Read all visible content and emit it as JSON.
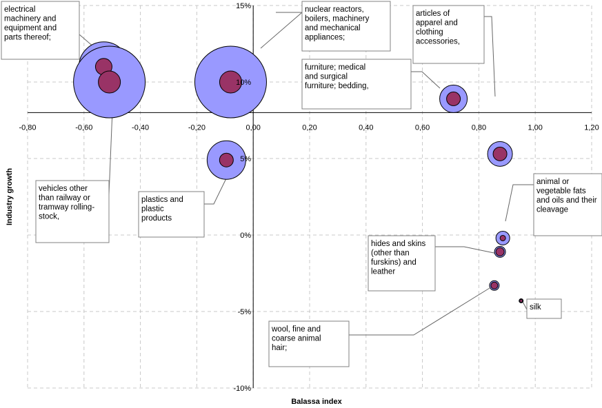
{
  "chart_data": {
    "type": "bubble",
    "xlabel": "Balassa index",
    "ylabel": "Industry growth",
    "xlim": [
      -0.8,
      1.2
    ],
    "ylim": [
      -10,
      15
    ],
    "x_ticks": [
      -0.8,
      -0.6,
      -0.4,
      -0.2,
      0.0,
      0.2,
      0.4,
      0.6,
      0.8,
      1.0,
      1.2
    ],
    "x_tick_labels": [
      "-0,80",
      "-0,60",
      "-0,40",
      "-0,20",
      "0,00",
      "0,20",
      "0,40",
      "0,60",
      "0,80",
      "1,00",
      "1,20"
    ],
    "y_ticks": [
      -10,
      -5,
      0,
      5,
      10,
      15
    ],
    "y_tick_labels": [
      "-10%",
      "-5%",
      "0%",
      "5%",
      "10%",
      "15%"
    ],
    "grid": true,
    "outer_color": "#9999ff",
    "inner_color": "#993366",
    "points": [
      {
        "label": "electrical machinery and equipment and parts thereof;",
        "x": -0.53,
        "y": 11.0,
        "outer_r": 36,
        "inner_r": 12
      },
      {
        "label": "vehicles other than railway or tramway rolling-stock,",
        "x": -0.51,
        "y": 10.0,
        "outer_r": 52,
        "inner_r": 16
      },
      {
        "label": "nuclear reactors, boilers, machinery and mechanical appliances;",
        "x": -0.08,
        "y": 10.0,
        "outer_r": 52,
        "inner_r": 16
      },
      {
        "label": "plastics and plastic products",
        "x": -0.095,
        "y": 4.9,
        "outer_r": 28,
        "inner_r": 10
      },
      {
        "label": "furniture; medical and surgical furniture; bedding,",
        "x": 0.71,
        "y": 8.9,
        "outer_r": 20,
        "inner_r": 10
      },
      {
        "label": "articles of apparel and clothing accessories,",
        "x": 0.875,
        "y": 5.3,
        "outer_r": 18,
        "inner_r": 10
      },
      {
        "label": "animal or vegetable fats and oils and their cleavage",
        "x": 0.885,
        "y": -0.2,
        "outer_r": 10,
        "inner_r": 4
      },
      {
        "label": "hides and skins (other than furskins) and leather",
        "x": 0.875,
        "y": -1.1,
        "outer_r": 8,
        "inner_r": 6
      },
      {
        "label": "wool, fine and coarse animal hair;",
        "x": 0.855,
        "y": -3.3,
        "outer_r": 7,
        "inner_r": 5
      },
      {
        "label": "silk",
        "x": 0.95,
        "y": -4.3,
        "outer_r": 3,
        "inner_r": 2
      }
    ],
    "annotations": [
      {
        "lines": [
          "electrical",
          "machinery and",
          "equipment and",
          "parts thereof;"
        ]
      },
      {
        "lines": [
          "nuclear reactors,",
          "boilers, machinery",
          "and mechanical",
          "appliances;"
        ]
      },
      {
        "lines": [
          "articles of",
          "apparel and",
          "clothing",
          "accessories,"
        ]
      },
      {
        "lines": [
          "furniture; medical",
          "and surgical",
          "furniture; bedding,"
        ]
      },
      {
        "lines": [
          "vehicles other",
          "than railway or",
          "tramway rolling-",
          "stock,"
        ]
      },
      {
        "lines": [
          "plastics and",
          "plastic",
          "products"
        ]
      },
      {
        "lines": [
          "animal or",
          "vegetable fats",
          "and oils and their",
          "cleavage"
        ]
      },
      {
        "lines": [
          "hides and skins",
          "(other than",
          "furskins) and",
          "leather"
        ]
      },
      {
        "lines": [
          "silk"
        ]
      },
      {
        "lines": [
          "wool, fine and",
          "coarse animal",
          "hair;"
        ]
      }
    ]
  }
}
